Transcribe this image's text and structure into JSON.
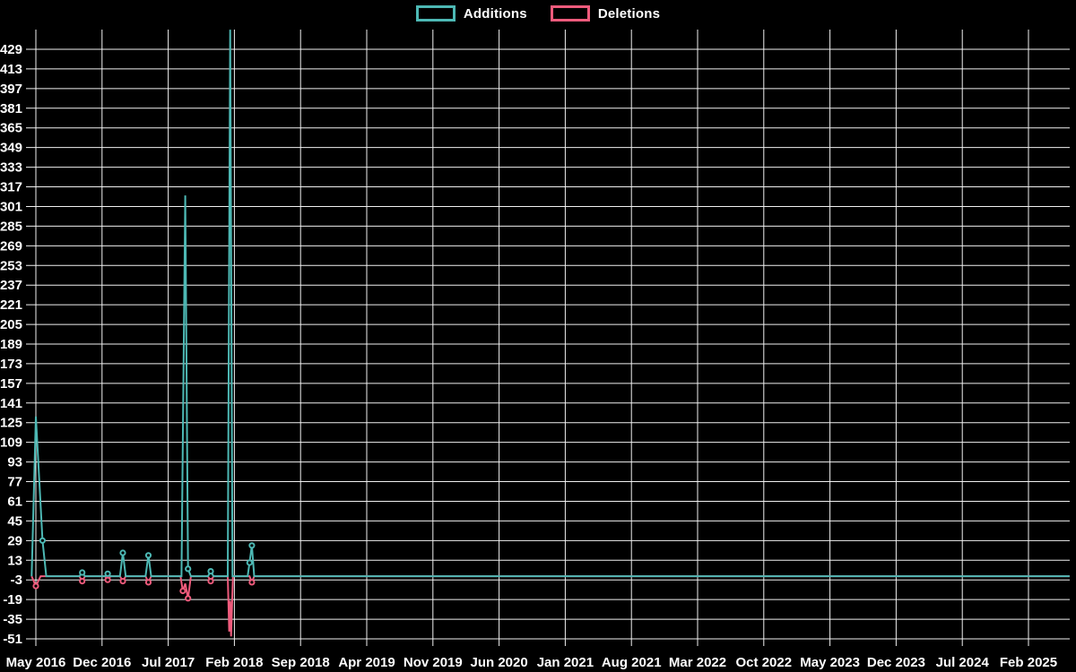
{
  "legend": {
    "items": [
      {
        "label": "Additions",
        "color": "#4db8b4"
      },
      {
        "label": "Deletions",
        "color": "#ee5b7c"
      }
    ]
  },
  "chart_data": {
    "type": "line",
    "title": "",
    "xlabel": "",
    "ylabel": "",
    "background": "#000000",
    "grid": true,
    "grid_color": "#f0f0f0",
    "legend_position": "top-center",
    "ylim": [
      -51,
      429
    ],
    "y_tick_step": 16,
    "y_ticks": [
      429,
      413,
      397,
      381,
      365,
      349,
      333,
      317,
      301,
      285,
      269,
      253,
      237,
      221,
      205,
      189,
      173,
      157,
      141,
      125,
      109,
      93,
      77,
      61,
      45,
      29,
      13,
      -3,
      -19,
      -35,
      -51
    ],
    "x_tick_labels": [
      "May 2016",
      "Dec 2016",
      "Jul 2017",
      "Feb 2018",
      "Sep 2018",
      "Apr 2019",
      "Nov 2019",
      "Jun 2020",
      "Jan 2021",
      "Aug 2021",
      "Mar 2022",
      "Oct 2022",
      "May 2023",
      "Dec 2023",
      "Jul 2024",
      "Feb 2025"
    ],
    "x_months_per_tick": 7,
    "note_peak_clipped": "Additions spike near Feb 2018 exceeds the visible axis maximum of 429 (drawn clipped at plot top)",
    "series": [
      {
        "name": "Deletions",
        "color": "#ee5b7c",
        "points": [
          [
            -0.45,
            0,
            0
          ],
          [
            0,
            -8,
            1
          ],
          [
            0.5,
            0,
            0
          ],
          [
            4.6,
            0,
            0
          ],
          [
            4.9,
            -4,
            1
          ],
          [
            5.2,
            0,
            0
          ],
          [
            7.3,
            0,
            0
          ],
          [
            7.6,
            -3,
            1
          ],
          [
            7.9,
            0,
            0
          ],
          [
            8.9,
            0,
            0
          ],
          [
            9.2,
            -4,
            1
          ],
          [
            9.5,
            0,
            0
          ],
          [
            11.6,
            0,
            0
          ],
          [
            11.9,
            -5,
            1
          ],
          [
            12.2,
            0,
            0
          ],
          [
            15.3,
            0,
            0
          ],
          [
            15.55,
            -12,
            1
          ],
          [
            15.8,
            -6,
            0
          ],
          [
            16.1,
            -18,
            1
          ],
          [
            16.4,
            0,
            0
          ],
          [
            18.2,
            0,
            0
          ],
          [
            18.5,
            -4,
            1
          ],
          [
            18.8,
            0,
            0
          ],
          [
            20.3,
            0,
            0
          ],
          [
            20.45,
            -45,
            0
          ],
          [
            20.55,
            -20,
            0
          ],
          [
            20.65,
            -49,
            0
          ],
          [
            20.85,
            0,
            0
          ],
          [
            22.6,
            0,
            0
          ],
          [
            22.85,
            -5,
            1
          ],
          [
            23.1,
            0,
            0
          ],
          [
            109.35,
            0,
            0
          ]
        ]
      },
      {
        "name": "Additions",
        "color": "#4db8b4",
        "points": [
          [
            -0.45,
            0,
            0
          ],
          [
            0,
            130,
            0
          ],
          [
            0.7,
            29,
            1
          ],
          [
            1.1,
            0,
            0
          ],
          [
            4.6,
            0,
            0
          ],
          [
            4.9,
            3,
            1
          ],
          [
            5.2,
            0,
            0
          ],
          [
            7.3,
            0,
            0
          ],
          [
            7.6,
            2,
            1
          ],
          [
            7.9,
            0,
            0
          ],
          [
            8.9,
            0,
            0
          ],
          [
            9.2,
            19,
            1
          ],
          [
            9.5,
            0,
            0
          ],
          [
            11.6,
            0,
            0
          ],
          [
            11.9,
            17,
            1
          ],
          [
            12.2,
            0,
            0
          ],
          [
            15.4,
            0,
            0
          ],
          [
            15.8,
            310,
            0
          ],
          [
            16.1,
            6,
            1
          ],
          [
            16.4,
            0,
            0
          ],
          [
            18.2,
            0,
            0
          ],
          [
            18.5,
            4,
            1
          ],
          [
            18.8,
            0,
            0
          ],
          [
            20.3,
            0,
            0
          ],
          [
            20.55,
            445,
            0
          ],
          [
            20.8,
            0,
            0
          ],
          [
            22.4,
            0,
            0
          ],
          [
            22.6,
            11,
            1
          ],
          [
            22.85,
            25,
            1
          ],
          [
            23.1,
            0,
            0
          ],
          [
            109.35,
            0,
            0
          ]
        ]
      }
    ]
  }
}
